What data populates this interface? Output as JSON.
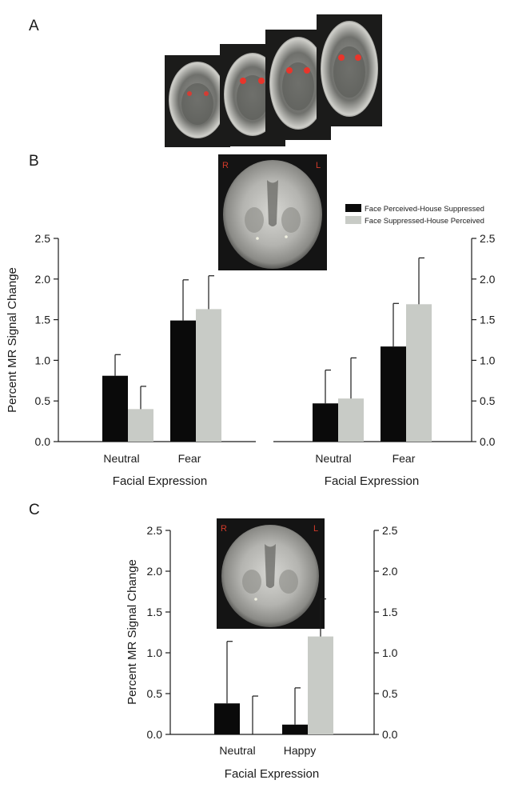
{
  "panels": {
    "a": "A",
    "b": "B",
    "c": "C"
  },
  "brain_labels": {
    "right": "R",
    "left": "L"
  },
  "colors": {
    "perceived": "#0a0a0a",
    "suppressed": "#c8cbc6",
    "axis": "#1a1a1a",
    "roi": "#e8352b"
  },
  "legend": {
    "perceived": "Face Perceived-House Suppressed",
    "suppressed": "Face Suppressed-House Perceived"
  },
  "chart_data": [
    {
      "panel": "B-left",
      "type": "bar",
      "ylabel": "Percent MR Signal Change",
      "xlabel": "Facial Expression",
      "ylim": [
        0,
        2.5
      ],
      "yticks": [
        "0.0",
        "0.5",
        "1.0",
        "1.5",
        "2.0",
        "2.5"
      ],
      "categories": [
        "Neutral",
        "Fear"
      ],
      "series": [
        {
          "name": "Face Perceived-House Suppressed",
          "values": [
            0.81,
            1.49
          ],
          "errors": [
            0.26,
            0.5
          ]
        },
        {
          "name": "Face Suppressed-House Perceived",
          "values": [
            0.4,
            1.63
          ],
          "errors": [
            0.28,
            0.41
          ]
        }
      ]
    },
    {
      "panel": "B-right",
      "type": "bar",
      "xlabel": "Facial Expression",
      "ylim": [
        0,
        2.5
      ],
      "yticks": [
        "0.0",
        "0.5",
        "1.0",
        "1.5",
        "2.0",
        "2.5"
      ],
      "categories": [
        "Neutral",
        "Fear"
      ],
      "series": [
        {
          "name": "Face Perceived-House Suppressed",
          "values": [
            0.47,
            1.17
          ],
          "errors": [
            0.41,
            0.53
          ]
        },
        {
          "name": "Face Suppressed-House Perceived",
          "values": [
            0.53,
            1.69
          ],
          "errors": [
            0.5,
            0.57
          ]
        }
      ]
    },
    {
      "panel": "C",
      "type": "bar",
      "ylabel": "Percent MR Signal Change",
      "xlabel": "Facial Expression",
      "ylim": [
        0,
        2.5
      ],
      "yticks": [
        "0.0",
        "0.5",
        "1.0",
        "1.5",
        "2.0",
        "2.5"
      ],
      "categories": [
        "Neutral",
        "Happy"
      ],
      "series": [
        {
          "name": "Face Perceived-House Suppressed",
          "values": [
            0.38,
            0.12
          ],
          "errors": [
            0.76,
            0.45
          ]
        },
        {
          "name": "Face Suppressed-House Perceived",
          "values": [
            0.0,
            1.2
          ],
          "errors": [
            0.47,
            0.46
          ]
        }
      ]
    }
  ]
}
